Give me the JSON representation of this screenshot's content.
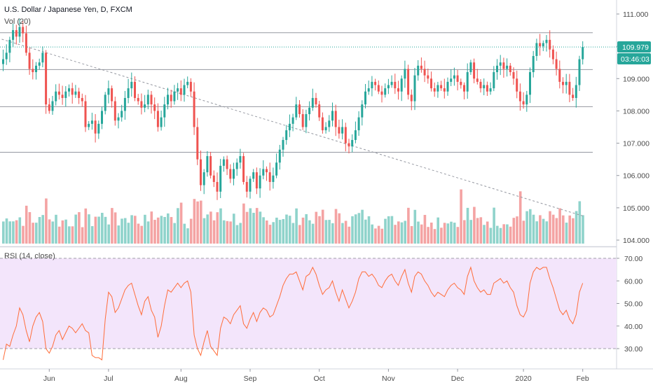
{
  "header": {
    "title": "U.S. Dollar / Japanese Yen, D, FXCM",
    "volume_label": "Vol (20)",
    "rsi_label": "RSI (14, close)"
  },
  "price_badge": {
    "value": "109.979",
    "countdown": "03:46:03",
    "color": "#26a69a"
  },
  "colors": {
    "up": "#26a69a",
    "down": "#ef5350",
    "vol_up": "#8fd3cb",
    "vol_down": "#f4a3a3",
    "rsi_line": "#ff6d3a",
    "rsi_band": "#f3e5fb",
    "level_line": "#787b86",
    "last_price_line": "#26a69a"
  },
  "chart_data": [
    {
      "type": "candlestick",
      "symbol": "USDJPY",
      "y_axis": {
        "ticks": [
          "111.000",
          "110.000",
          "109.000",
          "108.000",
          "107.000",
          "106.000",
          "105.000",
          "104.000"
        ],
        "range": [
          103.9,
          111.3
        ]
      },
      "x_axis": {
        "ticks": [
          "Jun",
          "Jul",
          "Aug",
          "Sep",
          "Oct",
          "Nov",
          "Dec",
          "2020",
          "Feb"
        ]
      },
      "horizontal_levels": [
        110.42,
        109.28,
        108.13,
        106.72
      ],
      "trendline": {
        "from": [
          0,
          110.22
        ],
        "to": [
          176,
          104.75
        ]
      },
      "last_price": 109.979,
      "closes": [
        109.6,
        109.8,
        110.2,
        110.5,
        110.3,
        110.6,
        110.4,
        109.8,
        109.3,
        109.2,
        109.4,
        109.5,
        109.8,
        108.2,
        108.0,
        108.3,
        108.6,
        108.5,
        108.4,
        108.6,
        108.7,
        108.5,
        108.6,
        108.4,
        108.3,
        107.5,
        107.6,
        107.7,
        107.3,
        107.6,
        108.0,
        108.5,
        108.7,
        108.3,
        107.7,
        107.8,
        108.0,
        108.4,
        108.7,
        108.9,
        108.4,
        108.3,
        108.1,
        108.2,
        108.5,
        108.2,
        108.0,
        107.5,
        107.8,
        108.2,
        108.5,
        108.3,
        108.6,
        108.7,
        108.5,
        108.8,
        108.9,
        108.6,
        107.5,
        106.5,
        105.7,
        106.1,
        106.6,
        106.0,
        105.8,
        105.5,
        106.3,
        106.5,
        106.2,
        105.9,
        106.2,
        106.4,
        106.6,
        105.8,
        105.5,
        105.9,
        106.1,
        105.6,
        106.0,
        106.2,
        106.1,
        105.8,
        106.0,
        106.4,
        106.8,
        107.1,
        107.4,
        107.6,
        107.8,
        108.2,
        107.9,
        107.5,
        107.9,
        108.1,
        108.4,
        108.2,
        107.8,
        107.4,
        107.5,
        107.7,
        108.0,
        107.5,
        107.3,
        107.5,
        107.0,
        106.9,
        107.1,
        107.4,
        107.8,
        108.2,
        108.6,
        108.7,
        108.9,
        108.8,
        108.6,
        108.5,
        108.7,
        108.8,
        108.9,
        108.7,
        108.6,
        109.0,
        109.3,
        108.5,
        108.3,
        109.1,
        109.4,
        109.3,
        109.1,
        109.0,
        108.7,
        108.6,
        108.8,
        108.7,
        108.6,
        108.9,
        109.0,
        109.1,
        108.9,
        108.8,
        108.6,
        109.2,
        109.5,
        109.0,
        108.9,
        108.7,
        108.8,
        108.6,
        108.7,
        109.2,
        109.4,
        109.5,
        109.3,
        109.4,
        109.2,
        109.0,
        108.6,
        108.3,
        108.2,
        108.5,
        109.2,
        109.7,
        110.1,
        110.0,
        110.1,
        110.2,
        109.9,
        109.6,
        109.3,
        108.9,
        108.8,
        108.9,
        108.5,
        108.4,
        108.8,
        109.6,
        109.979
      ]
    },
    {
      "type": "bar",
      "name": "Vol (20)",
      "axis_visible": false
    },
    {
      "type": "line",
      "name": "RSI (14, close)",
      "y_axis": {
        "ticks": [
          "70.00",
          "60.00",
          "50.00",
          "40.00",
          "30.00"
        ],
        "range": [
          20,
          73
        ]
      },
      "band": [
        30,
        70
      ],
      "values": [
        25,
        32,
        31,
        36,
        40,
        48,
        45,
        38,
        33,
        40,
        44,
        46,
        42,
        30,
        28,
        31,
        36,
        38,
        34,
        37,
        40,
        39,
        37,
        39,
        41,
        38,
        37,
        27,
        26,
        26,
        25,
        43,
        55,
        53,
        46,
        48,
        52,
        56,
        58,
        59,
        54,
        49,
        45,
        51,
        53,
        47,
        44,
        35,
        40,
        49,
        56,
        55,
        57,
        59,
        57,
        59,
        60,
        55,
        36,
        30,
        27,
        33,
        38,
        31,
        29,
        27,
        39,
        44,
        43,
        41,
        45,
        47,
        49,
        41,
        39,
        43,
        46,
        42,
        46,
        48,
        47,
        44,
        45,
        49,
        53,
        58,
        61,
        63,
        63,
        64,
        60,
        56,
        62,
        63,
        66,
        63,
        58,
        54,
        56,
        57,
        60,
        55,
        51,
        56,
        52,
        48,
        51,
        55,
        61,
        64,
        64,
        62,
        63,
        61,
        58,
        57,
        60,
        62,
        63,
        60,
        58,
        62,
        65,
        59,
        55,
        62,
        64,
        63,
        60,
        58,
        55,
        53,
        55,
        54,
        53,
        56,
        58,
        59,
        57,
        56,
        54,
        62,
        66,
        60,
        57,
        55,
        56,
        54,
        54,
        59,
        60,
        61,
        59,
        60,
        57,
        55,
        49,
        45,
        44,
        47,
        59,
        64,
        66,
        65,
        66,
        66,
        61,
        57,
        52,
        47,
        45,
        47,
        43,
        41,
        45,
        55,
        59
      ]
    }
  ]
}
